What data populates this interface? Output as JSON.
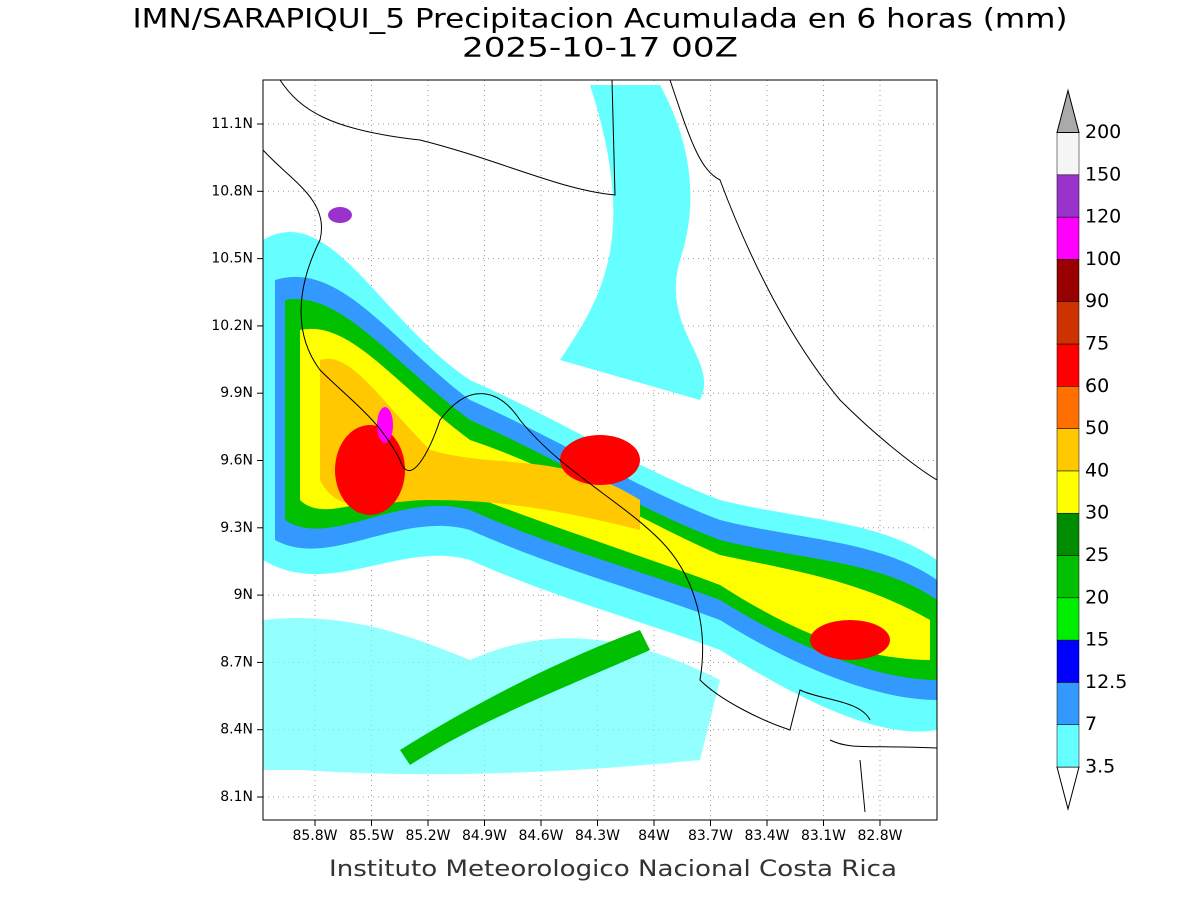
{
  "title": [
    "IMN/SARAPIQUI_5 Precipitacion Acumulada en 6 horas (mm)",
    "2025-10-17 00Z"
  ],
  "lat_labels": [
    "11.1N",
    "10.8N",
    "10.5N",
    "10.2N",
    "9.9N",
    "9.6N",
    "9.3N",
    "9N",
    "8.7N",
    "8.4N",
    "8.1N"
  ],
  "lon_labels": [
    "85.8W",
    "85.5W",
    "85.2W",
    "84.9W",
    "84.6W",
    "84.3W",
    "84W",
    "83.7W",
    "83.4W",
    "83.1W",
    "82.8W"
  ],
  "colorbar": {
    "levels": [
      3.5,
      7,
      12.5,
      15,
      20,
      25,
      30,
      40,
      50,
      60,
      75,
      90,
      100,
      120,
      150,
      200
    ],
    "colors": [
      "#ffffff",
      "#66ffff",
      "#3399ff",
      "#0000ff",
      "#00ee00",
      "#00c000",
      "#008c00",
      "#ffff00",
      "#ffc800",
      "#ff7000",
      "#ff0000",
      "#cc3300",
      "#990000",
      "#ff00ff",
      "#9933cc",
      "#f5f5f5",
      "#aaaaaa"
    ]
  },
  "footer": "Instituto Meteorologico Nacional Costa Rica"
}
